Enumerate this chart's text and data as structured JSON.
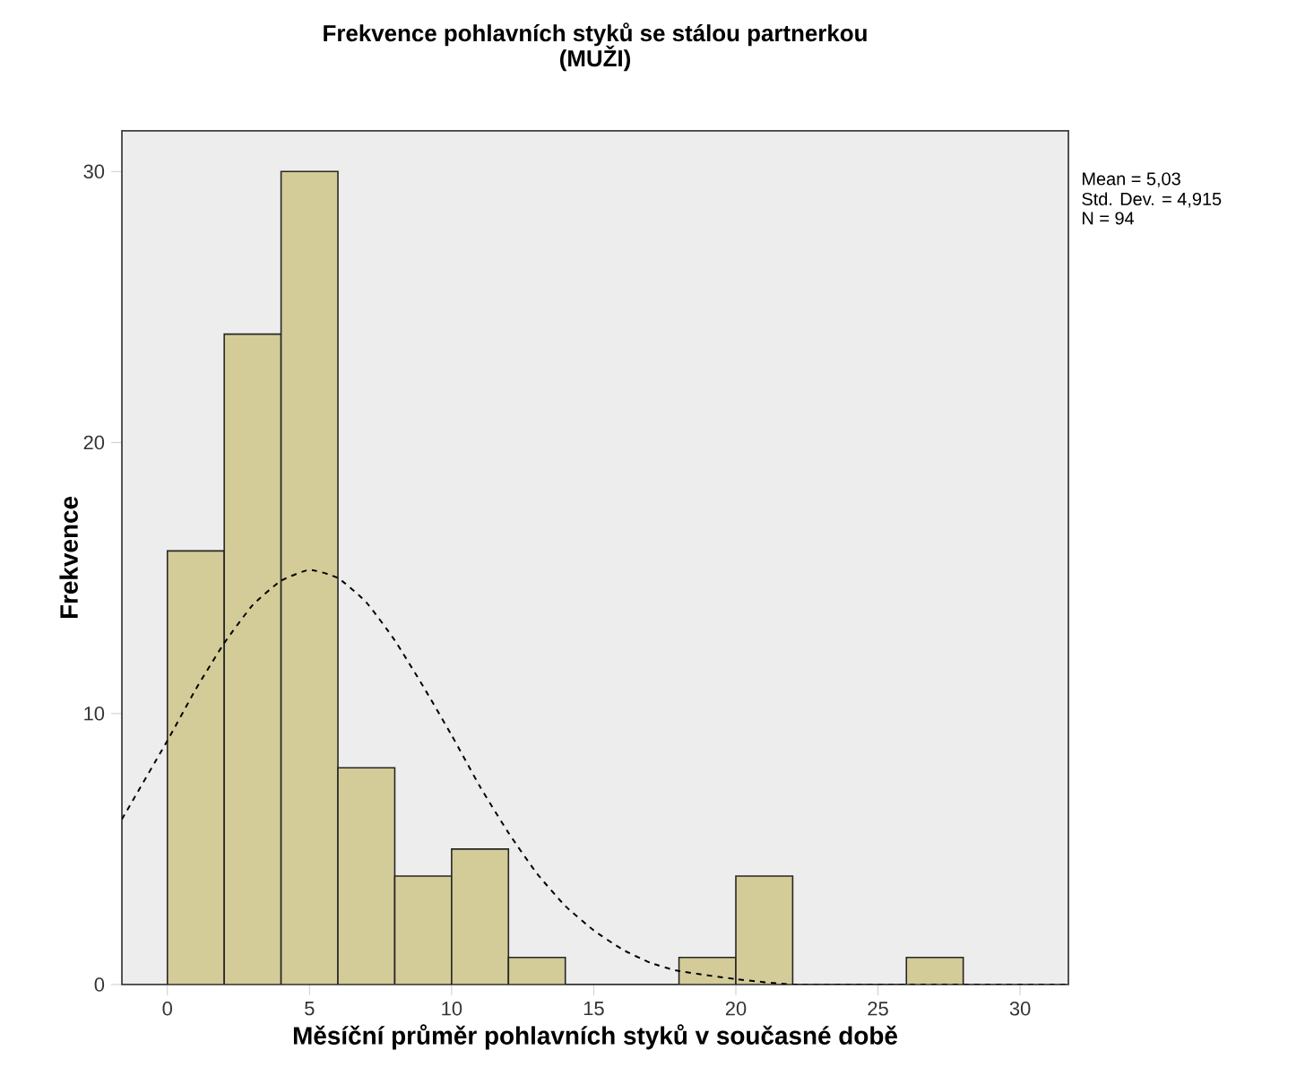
{
  "chart_data": {
    "type": "histogram",
    "title": "Frekvence pohlavních styků se stálou partnerkou",
    "subtitle": "(MUŽI)",
    "xlabel": "Měsíční průměr pohlavních styků v současné době",
    "ylabel": "Frekvence",
    "annotations": [
      "Mean = 5,03",
      "Std. Dev. = 4,915",
      "N = 94"
    ],
    "bins": [
      0,
      2,
      4,
      6,
      8,
      10,
      12,
      14,
      16,
      18,
      20,
      22,
      24,
      26,
      28
    ],
    "values": [
      16,
      24,
      30,
      8,
      4,
      5,
      1,
      0,
      0,
      1,
      4,
      0,
      0,
      1
    ],
    "color": "#d3cc98",
    "series": [
      {
        "type": "line",
        "color": "#000000",
        "line_style": "dashed",
        "marker": "none",
        "x": [
          -1.6,
          0,
          1,
          2,
          3,
          4,
          5,
          6,
          7,
          8,
          9,
          10,
          11,
          12,
          13,
          14,
          15,
          16,
          17,
          18,
          20,
          22,
          25,
          31.7
        ],
        "values": [
          6.1,
          9.0,
          10.9,
          12.6,
          14.0,
          14.9,
          15.3,
          15.0,
          14.1,
          12.7,
          11.0,
          9.2,
          7.3,
          5.6,
          4.1,
          2.9,
          2.0,
          1.3,
          0.8,
          0.5,
          0.2,
          0.0,
          0.0,
          0.0
        ]
      }
    ],
    "xlim": [
      -1.6,
      31.7
    ],
    "ylim": [
      0,
      31.5
    ],
    "xticks": [
      0,
      5,
      10,
      15,
      20,
      25,
      30
    ],
    "yticks": [
      0,
      10,
      20,
      30
    ]
  }
}
